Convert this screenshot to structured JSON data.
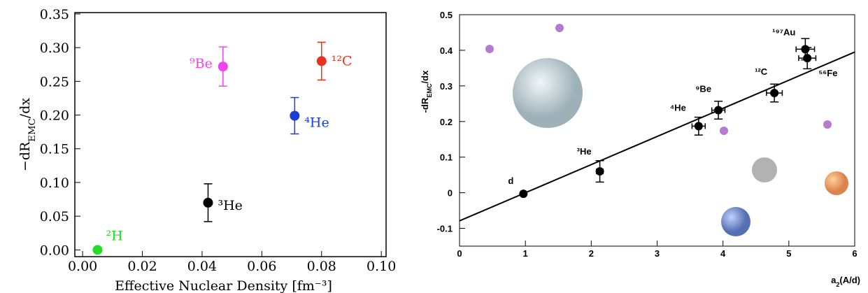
{
  "chart_data": [
    {
      "type": "scatter",
      "y_label": {
        "main": "−dR",
        "sub": "EMC",
        "tail": "/dx"
      },
      "x_label": "Effective Nuclear Density [fm⁻³]",
      "xlim": [
        -0.0026,
        0.1016
      ],
      "ylim": [
        -0.01,
        0.352
      ],
      "xticks": [
        {
          "value": 0,
          "label": "0.00"
        },
        {
          "value": 0.02,
          "label": "0.02"
        },
        {
          "value": 0.04,
          "label": "0.04"
        },
        {
          "value": 0.06,
          "label": "0.06"
        },
        {
          "value": 0.08,
          "label": "0.08"
        },
        {
          "value": 0.1,
          "label": "0.10"
        }
      ],
      "yticks": [
        {
          "value": 0,
          "label": "0.00"
        },
        {
          "value": 0.05,
          "label": "0.05"
        },
        {
          "value": 0.1,
          "label": "0.10"
        },
        {
          "value": 0.15,
          "label": "0.15"
        },
        {
          "value": 0.2,
          "label": "0.20"
        },
        {
          "value": 0.25,
          "label": "0.25"
        },
        {
          "value": 0.3,
          "label": "0.30"
        },
        {
          "value": 0.35,
          "label": "0.35"
        }
      ],
      "series": [
        {
          "name": "²H",
          "color": "#22dd22",
          "x": [
            0.005
          ],
          "values": [
            0.0
          ]
        },
        {
          "name": "³He",
          "color": "#000000",
          "x": [
            0.042
          ],
          "values": [
            0.07
          ],
          "errors": [
            0.028
          ]
        },
        {
          "name": "⁴He",
          "color": "#1a3fd6",
          "x": [
            0.071
          ],
          "values": [
            0.199
          ],
          "errors": [
            0.027
          ]
        },
        {
          "name": "⁹Be",
          "color": "#ee44ee",
          "x": [
            0.047
          ],
          "values": [
            0.272
          ],
          "errors": [
            0.029
          ]
        },
        {
          "name": "¹²C",
          "color": "#e8321e",
          "x": [
            0.08
          ],
          "values": [
            0.28
          ],
          "errors": [
            0.028
          ]
        }
      ]
    },
    {
      "type": "scatter",
      "y_label": {
        "main": "-dR",
        "sub": "EMC",
        "tail": "/dx"
      },
      "x_label": {
        "main": "a",
        "sub": "2",
        "tail": "(A/d)"
      },
      "xlim": [
        0,
        6
      ],
      "ylim": [
        -0.15,
        0.5
      ],
      "xticks": [
        0,
        1,
        2,
        3,
        4,
        5,
        6
      ],
      "yticks": [
        -0.1,
        0,
        0.1,
        0.2,
        0.3,
        0.4,
        0.5
      ],
      "series": [
        {
          "name": "d",
          "color": "#000000",
          "x": [
            0.97
          ],
          "values": [
            -0.003
          ]
        },
        {
          "name": "³He",
          "color": "#000000",
          "x": [
            2.13
          ],
          "values": [
            0.06
          ],
          "errors": [
            0.03
          ],
          "x_errors": [
            0.05
          ]
        },
        {
          "name": "⁴He",
          "color": "#000000",
          "x": [
            3.63
          ],
          "values": [
            0.187
          ],
          "errors": [
            0.025
          ],
          "x_errors": [
            0.1
          ]
        },
        {
          "name": "⁹Be",
          "color": "#000000",
          "x": [
            3.93
          ],
          "values": [
            0.232
          ],
          "errors": [
            0.025
          ],
          "x_errors": [
            0.1
          ]
        },
        {
          "name": "¹²C",
          "color": "#000000",
          "x": [
            4.78
          ],
          "values": [
            0.28
          ],
          "errors": [
            0.025
          ],
          "x_errors": [
            0.12
          ]
        },
        {
          "name": "⁵⁶Fe",
          "color": "#000000",
          "x": [
            5.28
          ],
          "values": [
            0.378
          ],
          "errors": [
            0.03
          ],
          "x_errors": [
            0.13
          ]
        },
        {
          "name": "¹⁹⁷Au",
          "color": "#000000",
          "x": [
            5.25
          ],
          "values": [
            0.403
          ],
          "errors": [
            0.03
          ],
          "x_errors": [
            0.14
          ]
        }
      ],
      "fit": {
        "color": "#000000",
        "x": [
          0,
          6
        ],
        "values": [
          -0.079,
          0.395
        ]
      }
    }
  ]
}
